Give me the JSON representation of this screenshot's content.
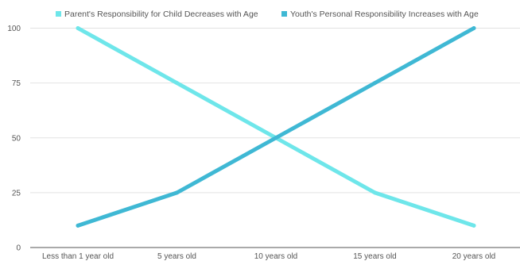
{
  "chart_data": {
    "type": "line",
    "categories": [
      "Less than 1 year old",
      "5 years old",
      "10 years old",
      "15 years old",
      "20 years old"
    ],
    "series": [
      {
        "name": "Parent's Responsibility for Child Decreases with Age",
        "values": [
          100,
          75,
          50,
          25,
          10
        ],
        "color": "#6ee6ea"
      },
      {
        "name": "Youth's Personal Responsibility Increases with Age",
        "values": [
          10,
          25,
          50,
          75,
          100
        ],
        "color": "#3fb8d4"
      }
    ],
    "yticks": [
      "0",
      "25",
      "50",
      "75",
      "100"
    ],
    "ylim": [
      0,
      100
    ],
    "grid": true,
    "legend_position": "top-center",
    "gridline_color": "#e2e2e2",
    "axis_line_color": "#555555"
  }
}
